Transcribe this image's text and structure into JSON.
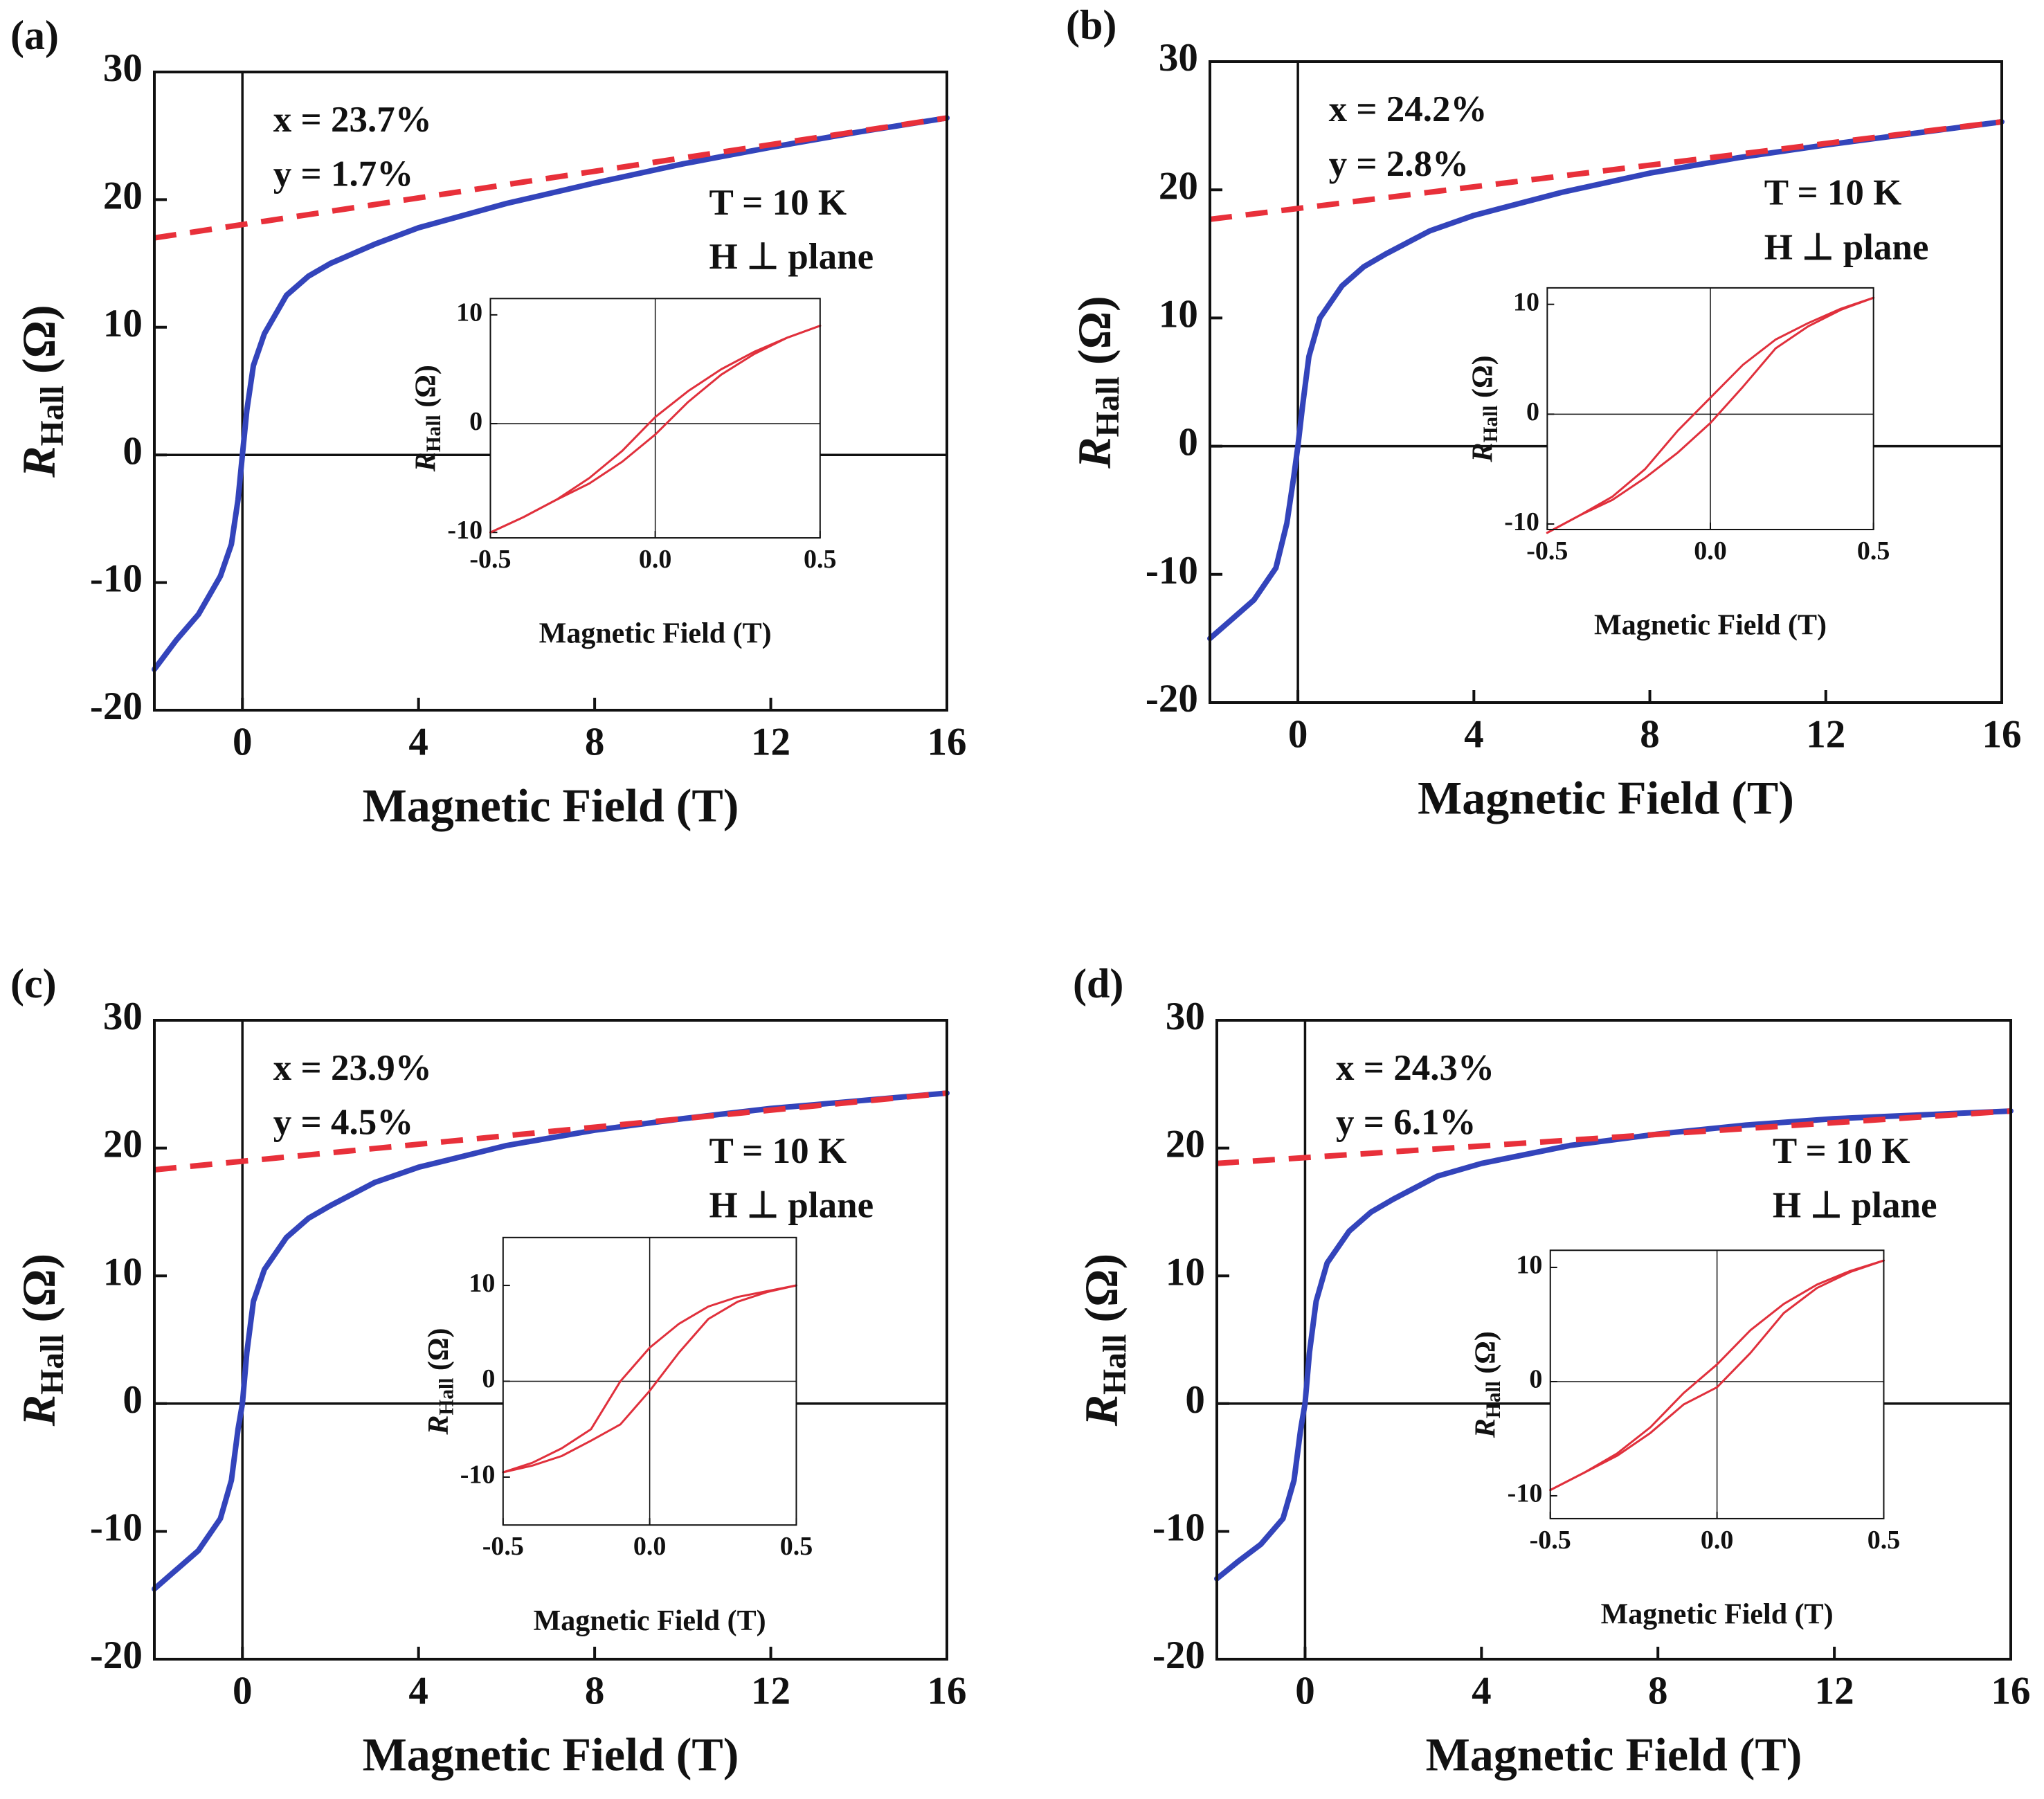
{
  "chart_data": [
    {
      "type": "line",
      "panel_label": "(a)",
      "xlabel": "Magnetic Field (T)",
      "ylabel": {
        "symbol": "R",
        "subscript": "Hall",
        "unit": " (Ω)"
      },
      "annotations": [
        "x = 23.7%",
        "y = 1.7%",
        "T = 10 K",
        "H ⊥ plane"
      ],
      "xlim": [
        -2,
        16
      ],
      "xticks": [
        0,
        4,
        8,
        12,
        16
      ],
      "ylim": [
        -20,
        30
      ],
      "yticks": [
        -20,
        -10,
        0,
        10,
        20,
        30
      ],
      "series": [
        {
          "color": "#3344bb",
          "x": [
            -2,
            -1.5,
            -1,
            -0.5,
            -0.25,
            -0.1,
            0,
            0.1,
            0.25,
            0.5,
            1,
            1.5,
            2,
            3,
            4,
            6,
            8,
            10,
            12,
            14,
            16
          ],
          "values": [
            -16.8,
            -14.5,
            -12.5,
            -9.5,
            -7,
            -3.5,
            0,
            3.5,
            7,
            9.5,
            12.5,
            14,
            15,
            16.5,
            17.8,
            19.7,
            21.3,
            22.8,
            24.1,
            25.3,
            26.4
          ]
        },
        {
          "color": "#e8303a",
          "dashed": true,
          "x": [
            -2,
            16
          ],
          "values": [
            17,
            26.4
          ]
        }
      ],
      "inset": {
        "type": "line",
        "xlabel": "Magnetic Field (T)",
        "ylabel": {
          "symbol": "R",
          "subscript": "Hall",
          "unit": " (Ω)"
        },
        "xlim": [
          -0.5,
          0.5
        ],
        "xticks": [
          -0.5,
          {
            "value": 0,
            "label": "0.0"
          },
          0.5
        ],
        "ylim": [
          -10.5,
          11.5
        ],
        "yticks": [
          -10,
          0,
          10
        ],
        "series": [
          {
            "color": "#e0303c",
            "x": [
              -0.5,
              -0.4,
              -0.3,
              -0.2,
              -0.1,
              0,
              0.1,
              0.2,
              0.3,
              0.4,
              0.5
            ],
            "values": [
              -10,
              -8.6,
              -7,
              -5,
              -2.5,
              0.6,
              3,
              5,
              6.6,
              7.9,
              9
            ]
          },
          {
            "color": "#e0303c",
            "x": [
              -0.5,
              -0.4,
              -0.3,
              -0.2,
              -0.1,
              0,
              0.1,
              0.2,
              0.3,
              0.4,
              0.5
            ],
            "values": [
              -10,
              -8.6,
              -7,
              -5.5,
              -3.5,
              -1,
              2,
              4.5,
              6.4,
              7.9,
              9
            ]
          }
        ]
      }
    },
    {
      "type": "line",
      "panel_label": "(b)",
      "xlabel": "Magnetic Field (T)",
      "ylabel": {
        "symbol": "R",
        "subscript": "Hall",
        "unit": " (Ω)"
      },
      "annotations": [
        "x = 24.2%",
        "y = 2.8%",
        "T = 10 K",
        "H ⊥ plane"
      ],
      "xlim": [
        -2,
        16
      ],
      "xticks": [
        0,
        4,
        8,
        12,
        16
      ],
      "ylim": [
        -20,
        30
      ],
      "yticks": [
        -20,
        -10,
        0,
        10,
        20,
        30
      ],
      "series": [
        {
          "color": "#3344bb",
          "x": [
            -2,
            -1.5,
            -1,
            -0.5,
            -0.25,
            -0.1,
            0,
            0.1,
            0.25,
            0.5,
            1,
            1.5,
            2,
            3,
            4,
            6,
            8,
            10,
            12,
            14,
            16
          ],
          "values": [
            -15,
            -13.5,
            -12,
            -9.5,
            -6,
            -2.5,
            0,
            3,
            7,
            10,
            12.5,
            14,
            15,
            16.8,
            18,
            19.8,
            21.3,
            22.5,
            23.5,
            24.4,
            25.3
          ]
        },
        {
          "color": "#e8303a",
          "dashed": true,
          "x": [
            -2,
            16
          ],
          "values": [
            17.7,
            25.3
          ]
        }
      ],
      "inset": {
        "type": "line",
        "xlabel": "Magnetic Field (T)",
        "ylabel": {
          "symbol": "R",
          "subscript": "Hall",
          "unit": " (Ω)"
        },
        "xlim": [
          -0.5,
          0.5
        ],
        "xticks": [
          -0.5,
          {
            "value": 0,
            "label": "0.0"
          },
          0.5
        ],
        "ylim": [
          -10.5,
          11.5
        ],
        "yticks": [
          -10,
          0,
          10
        ],
        "series": [
          {
            "color": "#e0303c",
            "x": [
              -0.5,
              -0.4,
              -0.3,
              -0.2,
              -0.1,
              0,
              0.1,
              0.2,
              0.3,
              0.4,
              0.5
            ],
            "values": [
              -10.8,
              -9.2,
              -7.5,
              -5,
              -1.5,
              1.5,
              4.5,
              6.8,
              8.3,
              9.6,
              10.6
            ]
          },
          {
            "color": "#e0303c",
            "x": [
              -0.5,
              -0.4,
              -0.3,
              -0.2,
              -0.1,
              0,
              0.1,
              0.2,
              0.3,
              0.4,
              0.5
            ],
            "values": [
              -10.8,
              -9.2,
              -7.8,
              -5.8,
              -3.5,
              -0.8,
              2.5,
              6,
              8,
              9.5,
              10.6
            ]
          }
        ]
      }
    },
    {
      "type": "line",
      "panel_label": "(c)",
      "xlabel": "Magnetic Field (T)",
      "ylabel": {
        "symbol": "R",
        "subscript": "Hall",
        "unit": " (Ω)"
      },
      "annotations": [
        "x = 23.9%",
        "y = 4.5%",
        "T = 10 K",
        "H ⊥ plane"
      ],
      "xlim": [
        -2,
        16
      ],
      "xticks": [
        0,
        4,
        8,
        12,
        16
      ],
      "ylim": [
        -20,
        30
      ],
      "yticks": [
        -20,
        -10,
        0,
        10,
        20,
        30
      ],
      "series": [
        {
          "color": "#3344bb",
          "x": [
            -2,
            -1.5,
            -1,
            -0.5,
            -0.25,
            -0.1,
            0,
            0.1,
            0.25,
            0.5,
            1,
            1.5,
            2,
            3,
            4,
            6,
            8,
            10,
            12,
            14,
            16
          ],
          "values": [
            -14.5,
            -13,
            -11.5,
            -9,
            -6,
            -2,
            0,
            4,
            8,
            10.5,
            13,
            14.5,
            15.5,
            17.3,
            18.5,
            20.2,
            21.4,
            22.3,
            23.1,
            23.7,
            24.3
          ]
        },
        {
          "color": "#e8303a",
          "dashed": true,
          "x": [
            -2,
            16
          ],
          "values": [
            18.3,
            24.3
          ]
        }
      ],
      "inset": {
        "type": "line",
        "xlabel": "Magnetic Field (T)",
        "ylabel": {
          "symbol": "R",
          "subscript": "Hall",
          "unit": " (Ω)"
        },
        "xlim": [
          -0.5,
          0.5
        ],
        "xticks": [
          -0.5,
          {
            "value": 0,
            "label": "0.0"
          },
          0.5
        ],
        "ylim": [
          -15,
          15
        ],
        "yticks": [
          -10,
          0,
          10
        ],
        "series": [
          {
            "color": "#e0303c",
            "x": [
              -0.5,
              -0.4,
              -0.3,
              -0.2,
              -0.1,
              0,
              0.1,
              0.2,
              0.3,
              0.4,
              0.5
            ],
            "values": [
              -9.5,
              -8.5,
              -7,
              -5,
              0,
              3.5,
              6,
              7.8,
              8.8,
              9.4,
              10
            ]
          },
          {
            "color": "#e0303c",
            "x": [
              -0.5,
              -0.4,
              -0.3,
              -0.2,
              -0.1,
              0,
              0.1,
              0.2,
              0.3,
              0.4,
              0.5
            ],
            "values": [
              -9.5,
              -8.8,
              -7.8,
              -6.2,
              -4.5,
              -1,
              3,
              6.5,
              8.3,
              9.3,
              10
            ]
          }
        ]
      }
    },
    {
      "type": "line",
      "panel_label": "(d)",
      "xlabel": "Magnetic Field (T)",
      "ylabel": {
        "symbol": "R",
        "subscript": "Hall",
        "unit": " (Ω)"
      },
      "annotations": [
        "x = 24.3%",
        "y =  6.1%",
        "T = 10 K",
        "H ⊥ plane"
      ],
      "xlim": [
        -2,
        16
      ],
      "xticks": [
        0,
        4,
        8,
        12,
        16
      ],
      "ylim": [
        -20,
        30
      ],
      "yticks": [
        -20,
        -10,
        0,
        10,
        20,
        30
      ],
      "series": [
        {
          "color": "#3344bb",
          "x": [
            -2,
            -1.5,
            -1,
            -0.5,
            -0.25,
            -0.1,
            0,
            0.1,
            0.25,
            0.5,
            1,
            1.5,
            2,
            3,
            4,
            6,
            8,
            10,
            12,
            14,
            16
          ],
          "values": [
            -13.7,
            -12.3,
            -11,
            -9,
            -6,
            -2,
            0,
            4,
            8,
            11,
            13.5,
            15,
            16,
            17.8,
            18.8,
            20.2,
            21.1,
            21.8,
            22.3,
            22.6,
            22.9
          ]
        },
        {
          "color": "#e8303a",
          "dashed": true,
          "x": [
            -2,
            16
          ],
          "values": [
            18.8,
            22.9
          ]
        }
      ],
      "inset": {
        "type": "line",
        "xlabel": "Magnetic Field (T)",
        "ylabel": {
          "symbol": "R",
          "subscript": "Hall",
          "unit": " (Ω)"
        },
        "xlim": [
          -0.5,
          0.5
        ],
        "xticks": [
          -0.5,
          {
            "value": 0,
            "label": "0.0"
          },
          0.5
        ],
        "ylim": [
          -12,
          11.5
        ],
        "yticks": [
          -10,
          0,
          10
        ],
        "series": [
          {
            "color": "#e0303c",
            "x": [
              -0.5,
              -0.4,
              -0.3,
              -0.2,
              -0.1,
              0,
              0.1,
              0.2,
              0.3,
              0.4,
              0.5
            ],
            "values": [
              -9.5,
              -8,
              -6.3,
              -4,
              -1,
              1.5,
              4.5,
              6.8,
              8.5,
              9.7,
              10.6
            ]
          },
          {
            "color": "#e0303c",
            "x": [
              -0.5,
              -0.4,
              -0.3,
              -0.2,
              -0.1,
              0,
              0.1,
              0.2,
              0.3,
              0.4,
              0.5
            ],
            "values": [
              -9.5,
              -8,
              -6.5,
              -4.5,
              -2,
              -0.5,
              2.5,
              6,
              8.2,
              9.6,
              10.6
            ]
          }
        ]
      }
    }
  ]
}
